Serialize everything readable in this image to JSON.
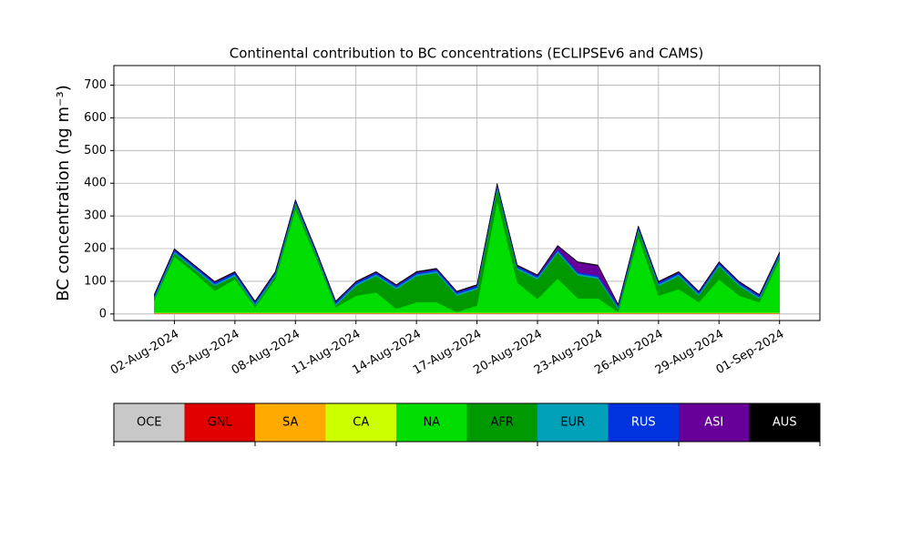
{
  "chart_data": {
    "type": "stacked_area",
    "title": "Continental contribution to BC concentrations (ECLIPSEv6 and CAMS)",
    "ylabel": "BC concentration (ng m⁻³)",
    "x": [
      "01-Aug-2024",
      "02-Aug-2024",
      "03-Aug-2024",
      "04-Aug-2024",
      "05-Aug-2024",
      "06-Aug-2024",
      "07-Aug-2024",
      "08-Aug-2024",
      "09-Aug-2024",
      "10-Aug-2024",
      "11-Aug-2024",
      "12-Aug-2024",
      "13-Aug-2024",
      "14-Aug-2024",
      "15-Aug-2024",
      "16-Aug-2024",
      "17-Aug-2024",
      "18-Aug-2024",
      "19-Aug-2024",
      "20-Aug-2024",
      "21-Aug-2024",
      "22-Aug-2024",
      "23-Aug-2024",
      "24-Aug-2024",
      "25-Aug-2024",
      "26-Aug-2024",
      "27-Aug-2024",
      "28-Aug-2024",
      "29-Aug-2024",
      "30-Aug-2024",
      "31-Aug-2024",
      "01-Sep-2024"
    ],
    "xlim": [
      "30-Jul-2024",
      "03-Sep-2024"
    ],
    "xticks": [
      "02-Aug-2024",
      "05-Aug-2024",
      "08-Aug-2024",
      "11-Aug-2024",
      "14-Aug-2024",
      "17-Aug-2024",
      "20-Aug-2024",
      "23-Aug-2024",
      "26-Aug-2024",
      "29-Aug-2024",
      "01-Sep-2024"
    ],
    "ylim": [
      -20,
      760
    ],
    "yticks": [
      0,
      100,
      200,
      300,
      400,
      500,
      600,
      700
    ],
    "grid": true,
    "series": [
      {
        "name": "OCE",
        "color": "#c8c8c8",
        "values": [
          1,
          1,
          1,
          1,
          1,
          1,
          1,
          1,
          1,
          1,
          1,
          1,
          1,
          1,
          1,
          1,
          1,
          1,
          1,
          1,
          1,
          1,
          1,
          1,
          1,
          1,
          1,
          1,
          1,
          1,
          1,
          1
        ]
      },
      {
        "name": "GNL",
        "color": "#e00000",
        "values": [
          1,
          1,
          1,
          1,
          1,
          1,
          1,
          1,
          1,
          1,
          1,
          1,
          1,
          1,
          1,
          1,
          1,
          1,
          1,
          1,
          1,
          1,
          1,
          1,
          1,
          1,
          1,
          1,
          1,
          1,
          1,
          1
        ]
      },
      {
        "name": "SA",
        "color": "#ffaa00",
        "values": [
          1,
          1,
          1,
          1,
          1,
          1,
          1,
          1,
          1,
          1,
          1,
          1,
          1,
          1,
          1,
          1,
          1,
          1,
          1,
          1,
          1,
          1,
          1,
          1,
          1,
          1,
          1,
          1,
          1,
          1,
          1,
          1
        ]
      },
      {
        "name": "CA",
        "color": "#ccff00",
        "values": [
          1,
          1,
          1,
          1,
          1,
          1,
          1,
          1,
          1,
          1,
          1,
          1,
          1,
          1,
          1,
          1,
          1,
          1,
          1,
          1,
          1,
          1,
          1,
          1,
          1,
          1,
          1,
          1,
          1,
          1,
          1,
          1
        ]
      },
      {
        "name": "NA",
        "color": "#00dd00",
        "values": [
          37,
          172,
          122,
          67,
          102,
          17,
          102,
          317,
          172,
          17,
          52,
          62,
          12,
          32,
          32,
          2,
          22,
          342,
          92,
          42,
          104,
          44,
          44,
          2,
          232,
          52,
          72,
          32,
          102,
          52,
          32,
          162
        ]
      },
      {
        "name": "AFR",
        "color": "#009900",
        "values": [
          5,
          10,
          10,
          15,
          10,
          5,
          10,
          15,
          10,
          5,
          30,
          50,
          60,
          80,
          90,
          50,
          50,
          40,
          40,
          60,
          80,
          70,
          60,
          10,
          20,
          30,
          40,
          20,
          40,
          30,
          10,
          10
        ]
      },
      {
        "name": "EUR",
        "color": "#00a0b8",
        "values": [
          5,
          5,
          5,
          5,
          5,
          5,
          5,
          5,
          5,
          5,
          5,
          5,
          5,
          5,
          5,
          5,
          5,
          5,
          5,
          5,
          5,
          5,
          5,
          5,
          5,
          5,
          5,
          5,
          5,
          5,
          5,
          5
        ]
      },
      {
        "name": "RUS",
        "color": "#0033dd",
        "values": [
          5,
          5,
          5,
          5,
          5,
          5,
          5,
          5,
          5,
          5,
          5,
          5,
          5,
          5,
          5,
          5,
          5,
          5,
          5,
          5,
          5,
          5,
          5,
          5,
          5,
          5,
          5,
          5,
          5,
          5,
          5,
          5
        ]
      },
      {
        "name": "ASI",
        "color": "#660099",
        "values": [
          2,
          2,
          2,
          2,
          2,
          2,
          2,
          2,
          2,
          2,
          2,
          2,
          2,
          2,
          2,
          2,
          2,
          2,
          2,
          2,
          10,
          30,
          30,
          2,
          2,
          2,
          2,
          2,
          2,
          2,
          2,
          2
        ]
      },
      {
        "name": "AUS",
        "color": "#000000",
        "values": [
          2,
          2,
          2,
          2,
          2,
          2,
          2,
          2,
          2,
          2,
          2,
          2,
          2,
          2,
          2,
          2,
          2,
          2,
          2,
          2,
          2,
          2,
          2,
          2,
          2,
          2,
          2,
          2,
          2,
          2,
          2,
          2
        ]
      }
    ]
  }
}
